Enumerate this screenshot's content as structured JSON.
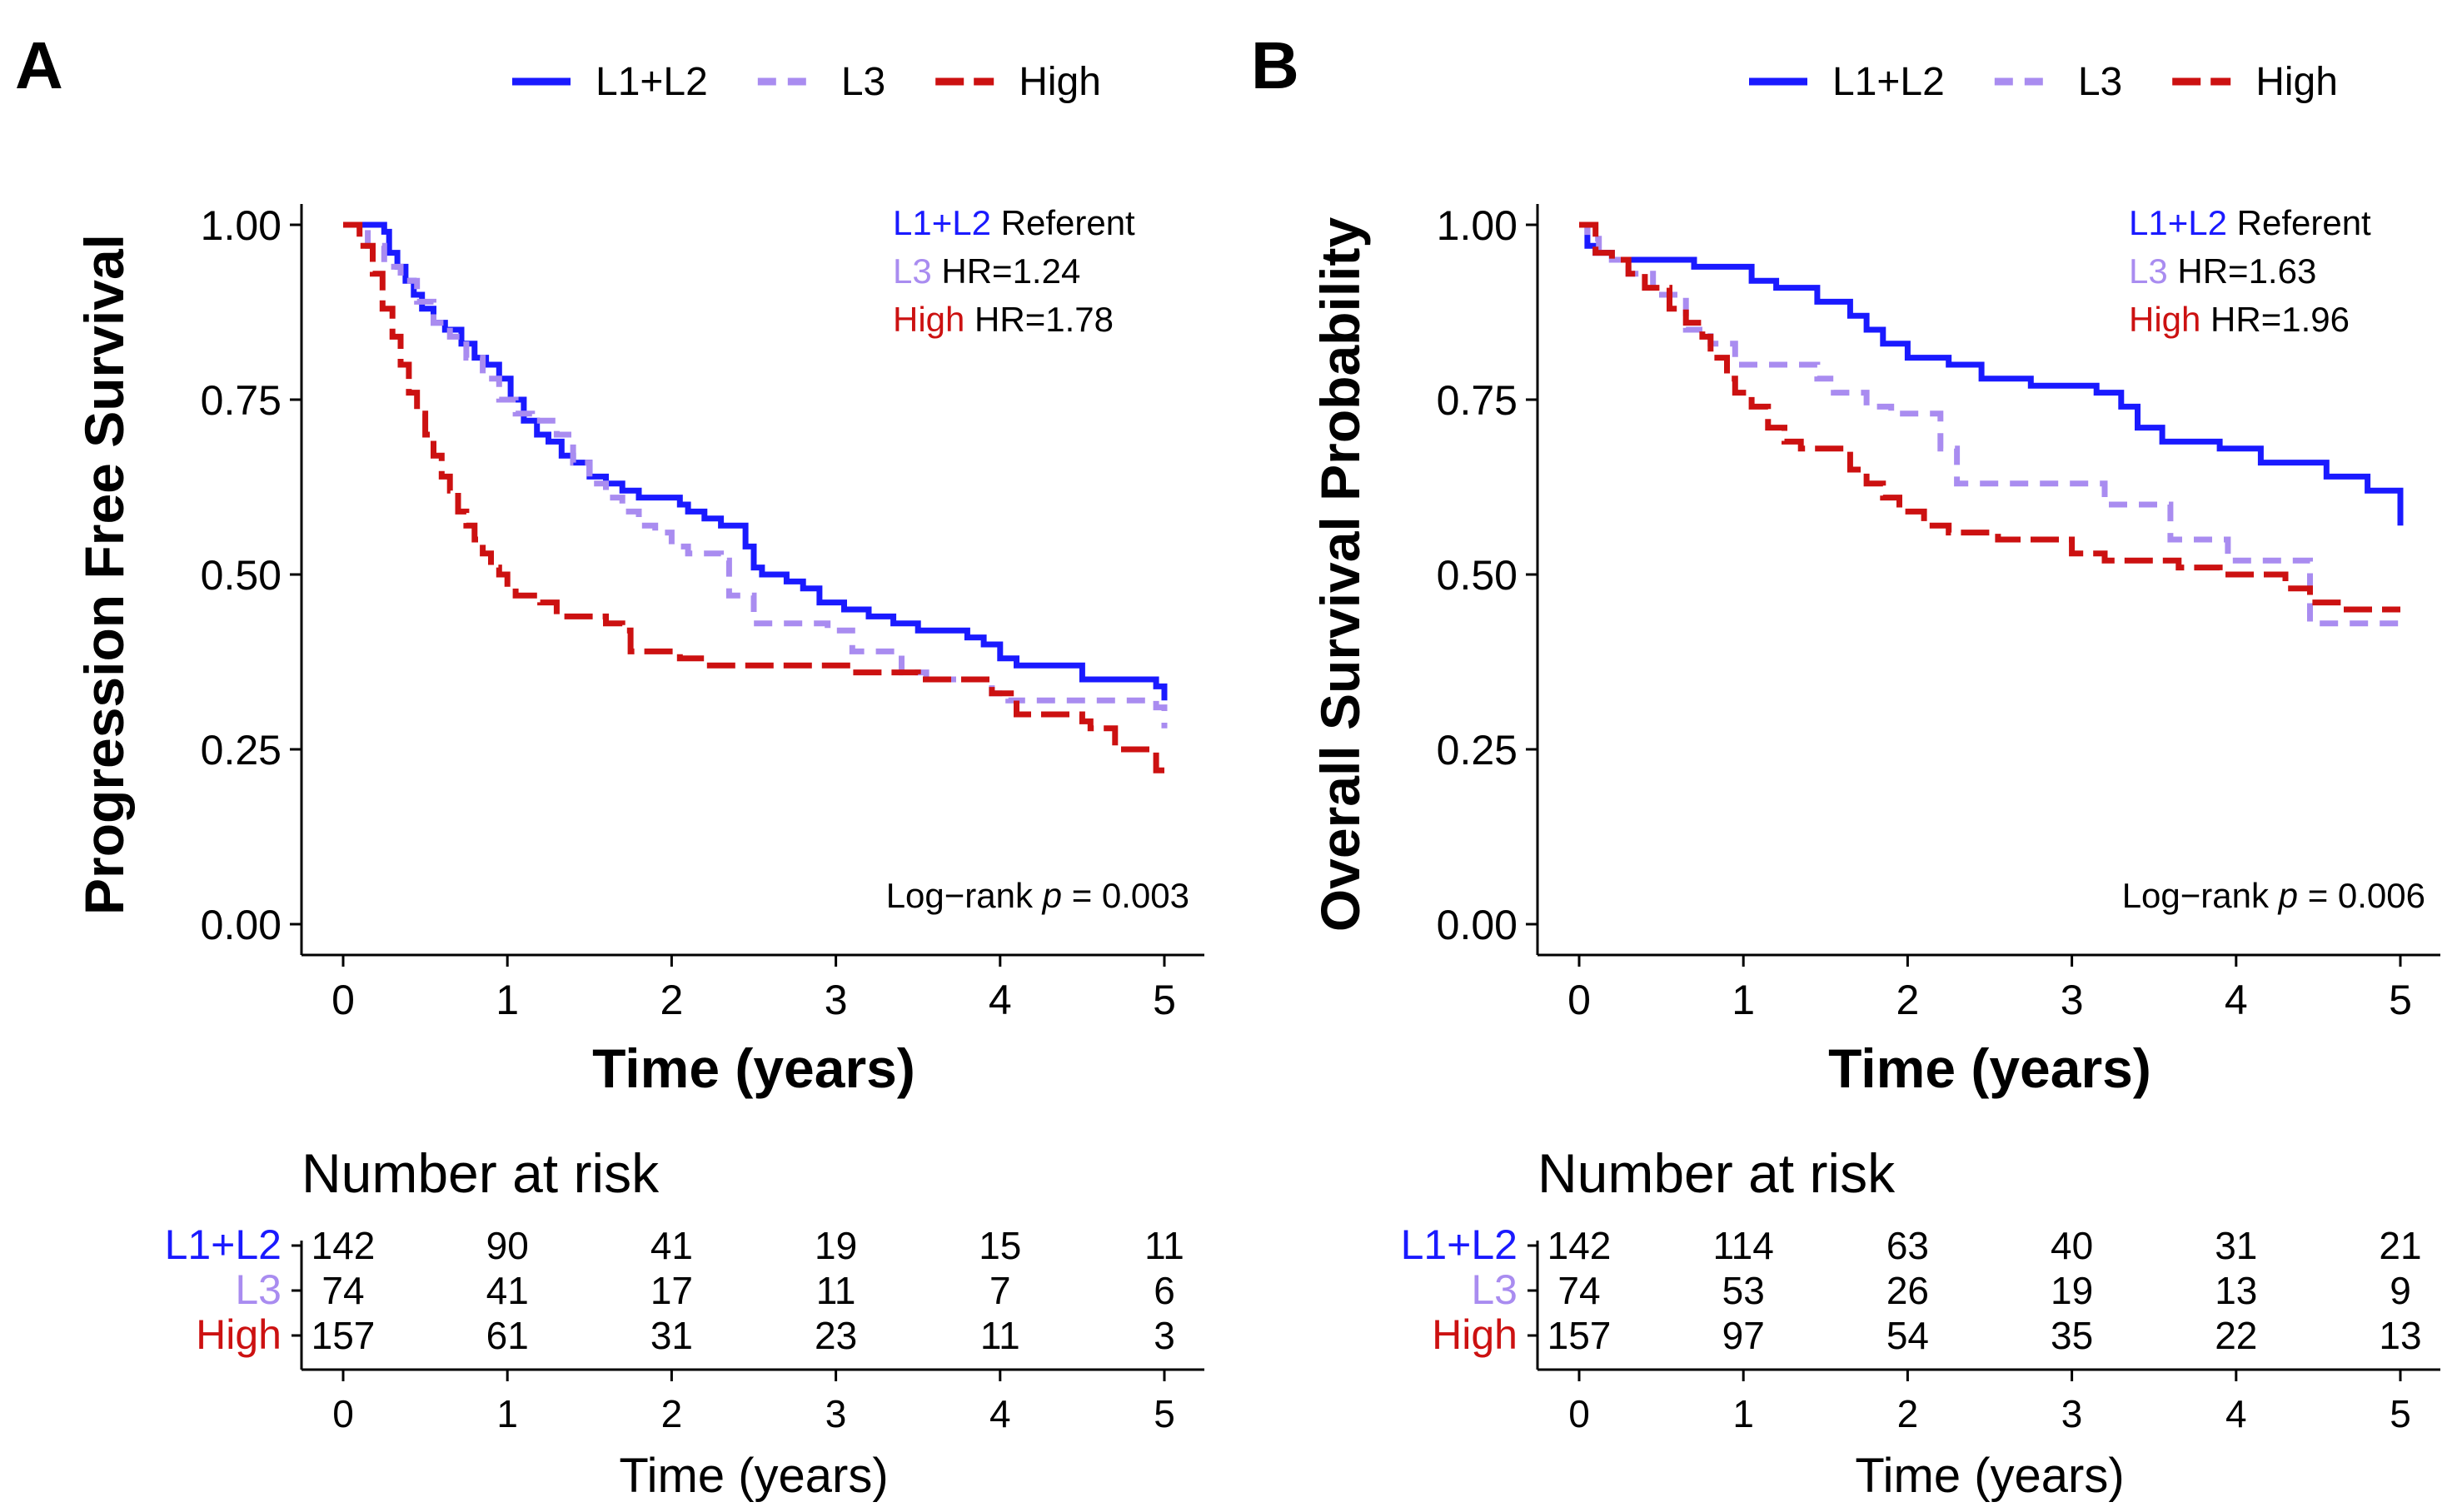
{
  "colors": {
    "L1L2": "#1a1aff",
    "L3": "#a98cf0",
    "High": "#cc1111",
    "axis": "#000000"
  },
  "legend": {
    "items": [
      {
        "key": "L1L2",
        "label": "L1+L2",
        "dash": ""
      },
      {
        "key": "L3",
        "label": "L3",
        "dash": "22,14"
      },
      {
        "key": "High",
        "label": "High",
        "dash": "34,12"
      }
    ]
  },
  "panels": [
    {
      "letter": "A",
      "chart_data": {
        "type": "line",
        "title": "",
        "xlabel": "Time (years)",
        "ylabel": "Progression Free Survival",
        "xlim": [
          0,
          5
        ],
        "ylim": [
          0,
          1
        ],
        "xticks": [
          "0",
          "1",
          "2",
          "3",
          "4",
          "5"
        ],
        "yticks": [
          "0.00",
          "0.25",
          "0.50",
          "0.75",
          "1.00"
        ],
        "series": [
          {
            "name": "L1+L2",
            "key": "L1L2",
            "x": [
              0,
              0.25,
              0.28,
              0.33,
              0.38,
              0.43,
              0.48,
              0.55,
              0.62,
              0.72,
              0.8,
              0.87,
              0.95,
              1.02,
              1.1,
              1.18,
              1.25,
              1.33,
              1.4,
              1.5,
              1.6,
              1.7,
              1.8,
              2.05,
              2.1,
              2.2,
              2.3,
              2.45,
              2.5,
              2.55,
              2.7,
              2.8,
              2.9,
              3.05,
              3.2,
              3.35,
              3.5,
              3.8,
              3.9,
              4.0,
              4.1,
              4.5,
              4.95,
              5.0
            ],
            "y": [
              1.0,
              0.99,
              0.96,
              0.94,
              0.92,
              0.9,
              0.88,
              0.86,
              0.85,
              0.83,
              0.81,
              0.8,
              0.78,
              0.75,
              0.72,
              0.7,
              0.69,
              0.67,
              0.66,
              0.64,
              0.63,
              0.62,
              0.61,
              0.6,
              0.59,
              0.58,
              0.57,
              0.54,
              0.51,
              0.5,
              0.49,
              0.48,
              0.46,
              0.45,
              0.44,
              0.43,
              0.42,
              0.41,
              0.4,
              0.38,
              0.37,
              0.35,
              0.34,
              0.32
            ]
          },
          {
            "name": "L3",
            "key": "L3",
            "x": [
              0,
              0.15,
              0.25,
              0.35,
              0.45,
              0.55,
              0.65,
              0.75,
              0.85,
              0.95,
              1.05,
              1.15,
              1.3,
              1.4,
              1.5,
              1.6,
              1.7,
              1.8,
              1.9,
              2.0,
              2.1,
              2.3,
              2.35,
              2.5,
              2.95,
              3.1,
              3.4,
              3.55,
              3.95,
              4.05,
              4.95,
              5.0
            ],
            "y": [
              1.0,
              0.97,
              0.94,
              0.92,
              0.89,
              0.86,
              0.84,
              0.81,
              0.78,
              0.75,
              0.73,
              0.72,
              0.7,
              0.66,
              0.63,
              0.61,
              0.59,
              0.57,
              0.56,
              0.54,
              0.53,
              0.52,
              0.47,
              0.43,
              0.42,
              0.39,
              0.36,
              0.35,
              0.33,
              0.32,
              0.31,
              0.28
            ]
          },
          {
            "name": "High",
            "key": "High",
            "x": [
              0,
              0.1,
              0.18,
              0.24,
              0.3,
              0.35,
              0.4,
              0.45,
              0.5,
              0.55,
              0.6,
              0.65,
              0.7,
              0.75,
              0.8,
              0.85,
              0.9,
              0.95,
              1.0,
              1.05,
              1.1,
              1.2,
              1.3,
              1.6,
              1.7,
              1.75,
              2.05,
              2.2,
              3.1,
              3.5,
              3.95,
              4.1,
              4.5,
              4.55,
              4.7,
              4.95,
              5.0
            ],
            "y": [
              1.0,
              0.97,
              0.93,
              0.88,
              0.84,
              0.8,
              0.76,
              0.73,
              0.7,
              0.67,
              0.64,
              0.62,
              0.59,
              0.57,
              0.55,
              0.53,
              0.51,
              0.5,
              0.48,
              0.47,
              0.47,
              0.46,
              0.44,
              0.43,
              0.42,
              0.39,
              0.38,
              0.37,
              0.36,
              0.35,
              0.33,
              0.3,
              0.29,
              0.28,
              0.25,
              0.22,
              0.22
            ]
          }
        ],
        "annotations": {
          "referent": {
            "group": "L1+L2",
            "text": "Referent"
          },
          "hr": [
            {
              "key": "L3",
              "group": "L3",
              "text": "HR=1.24"
            },
            {
              "key": "High",
              "group": "High",
              "text": "HR=1.78"
            }
          ],
          "logrank_prefix": "Log−rank ",
          "logrank_p": "p",
          "logrank_value": " = 0.003"
        }
      },
      "risk_table": {
        "title": "Number at risk",
        "xlabel": "Time (years)",
        "times": [
          "0",
          "1",
          "2",
          "3",
          "4",
          "5"
        ],
        "rows": [
          {
            "group": "L1+L2",
            "key": "L1L2",
            "values": [
              "142",
              "90",
              "41",
              "19",
              "15",
              "11"
            ]
          },
          {
            "group": "L3",
            "key": "L3",
            "values": [
              "74",
              "41",
              "17",
              "11",
              "7",
              "6"
            ]
          },
          {
            "group": "High",
            "key": "High",
            "values": [
              "157",
              "61",
              "31",
              "23",
              "11",
              "3"
            ]
          }
        ]
      }
    },
    {
      "letter": "B",
      "chart_data": {
        "type": "line",
        "title": "",
        "xlabel": "Time (years)",
        "ylabel": "Overall Survival Probability",
        "xlim": [
          0,
          5
        ],
        "ylim": [
          0,
          1
        ],
        "xticks": [
          "0",
          "1",
          "2",
          "3",
          "4",
          "5"
        ],
        "yticks": [
          "0.00",
          "0.25",
          "0.50",
          "0.75",
          "1.00"
        ],
        "series": [
          {
            "name": "L1+L2",
            "key": "L1L2",
            "x": [
              0,
              0.05,
              0.1,
              0.2,
              0.3,
              0.7,
              1.05,
              1.2,
              1.45,
              1.65,
              1.75,
              1.85,
              2.0,
              2.25,
              2.45,
              2.75,
              3.15,
              3.3,
              3.4,
              3.55,
              3.9,
              4.15,
              4.55,
              4.8,
              5.0
            ],
            "y": [
              1.0,
              0.97,
              0.96,
              0.95,
              0.95,
              0.94,
              0.92,
              0.91,
              0.89,
              0.87,
              0.85,
              0.83,
              0.81,
              0.8,
              0.78,
              0.77,
              0.76,
              0.74,
              0.71,
              0.69,
              0.68,
              0.66,
              0.64,
              0.62,
              0.57
            ]
          },
          {
            "name": "L3",
            "key": "L3",
            "x": [
              0,
              0.05,
              0.12,
              0.2,
              0.3,
              0.45,
              0.65,
              0.8,
              0.95,
              1.45,
              1.55,
              1.75,
              1.9,
              2.2,
              2.3,
              2.45,
              2.85,
              3.2,
              3.6,
              3.95,
              4.45,
              4.95,
              5.0
            ],
            "y": [
              1.0,
              0.98,
              0.96,
              0.95,
              0.93,
              0.9,
              0.85,
              0.83,
              0.8,
              0.78,
              0.76,
              0.74,
              0.73,
              0.68,
              0.63,
              0.63,
              0.63,
              0.6,
              0.55,
              0.52,
              0.43,
              0.43,
              0.43
            ]
          },
          {
            "name": "High",
            "key": "High",
            "x": [
              0,
              0.1,
              0.2,
              0.3,
              0.4,
              0.55,
              0.65,
              0.75,
              0.8,
              0.9,
              0.95,
              1.05,
              1.15,
              1.25,
              1.35,
              1.55,
              1.65,
              1.75,
              1.85,
              1.95,
              2.1,
              2.25,
              2.55,
              3.0,
              3.2,
              3.65,
              3.9,
              4.3,
              4.45,
              4.65,
              5.0
            ],
            "y": [
              1.0,
              0.96,
              0.95,
              0.93,
              0.91,
              0.88,
              0.86,
              0.84,
              0.81,
              0.78,
              0.76,
              0.74,
              0.71,
              0.69,
              0.68,
              0.68,
              0.65,
              0.63,
              0.61,
              0.59,
              0.57,
              0.56,
              0.55,
              0.53,
              0.52,
              0.51,
              0.5,
              0.48,
              0.46,
              0.45,
              0.45
            ]
          }
        ],
        "annotations": {
          "referent": {
            "group": "L1+L2",
            "text": "Referent"
          },
          "hr": [
            {
              "key": "L3",
              "group": "L3",
              "text": "HR=1.63"
            },
            {
              "key": "High",
              "group": "High",
              "text": "HR=1.96"
            }
          ],
          "logrank_prefix": "Log−rank ",
          "logrank_p": "p",
          "logrank_value": " = 0.006"
        }
      },
      "risk_table": {
        "title": "Number at risk",
        "xlabel": "Time (years)",
        "times": [
          "0",
          "1",
          "2",
          "3",
          "4",
          "5"
        ],
        "rows": [
          {
            "group": "L1+L2",
            "key": "L1L2",
            "values": [
              "142",
              "114",
              "63",
              "40",
              "31",
              "21"
            ]
          },
          {
            "group": "L3",
            "key": "L3",
            "values": [
              "74",
              "53",
              "26",
              "19",
              "13",
              "9"
            ]
          },
          {
            "group": "High",
            "key": "High",
            "values": [
              "157",
              "97",
              "54",
              "35",
              "22",
              "13"
            ]
          }
        ]
      }
    }
  ]
}
